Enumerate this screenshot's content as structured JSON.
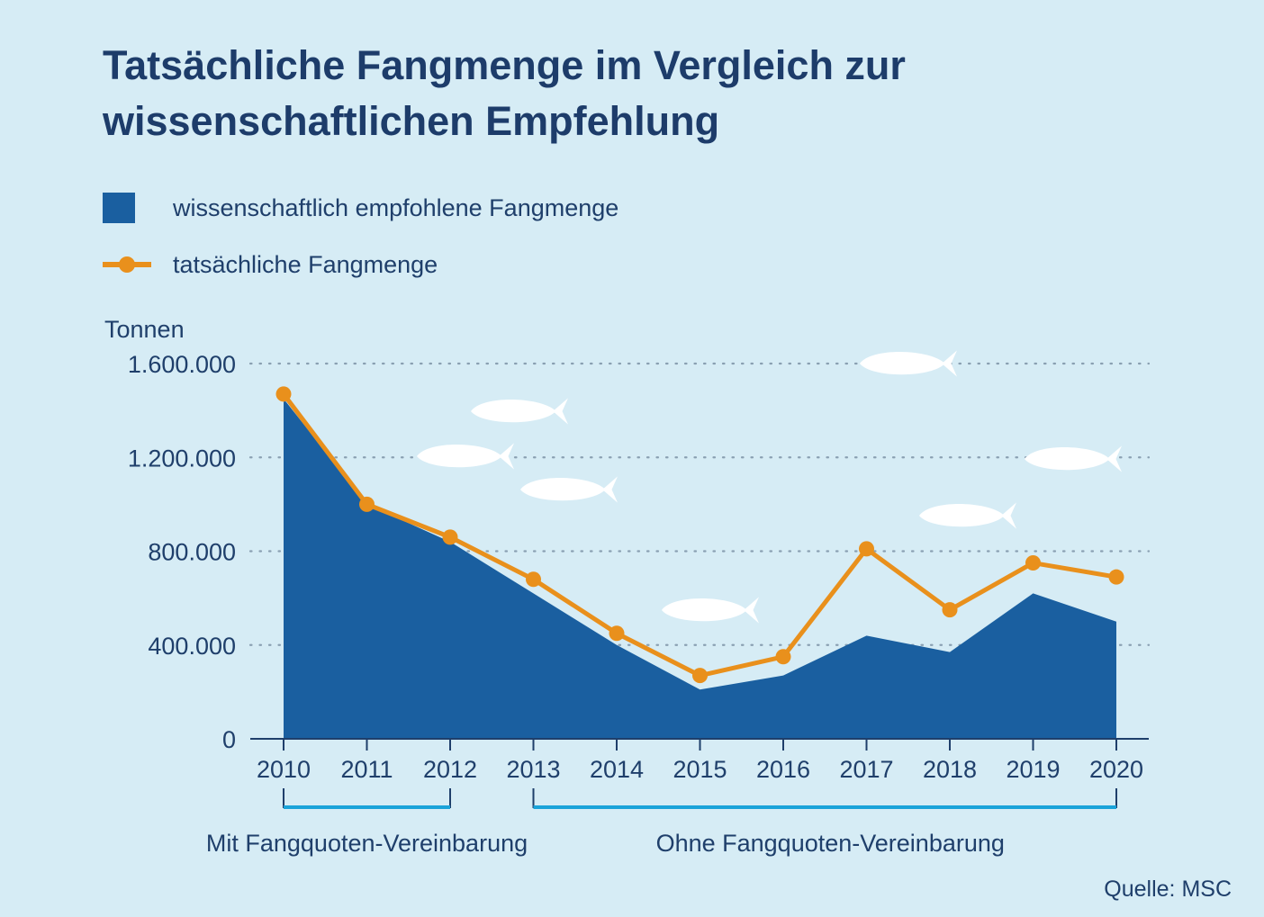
{
  "title_line1": "Tatsächliche Fangmenge im Vergleich zur",
  "title_line2": "wissenschaftlichen Empfehlung",
  "legend": [
    {
      "label": "wissenschaftlich empfohlene Fangmenge",
      "color": "#1a5fa0",
      "kind": "area"
    },
    {
      "label": "tatsächliche Fangmenge",
      "color": "#e9901c",
      "kind": "line"
    }
  ],
  "source": "Quelle: MSC",
  "periods": [
    {
      "label": "Mit Fangquoten-Vereinbarung",
      "from": "2010",
      "to": "2012"
    },
    {
      "label": "Ohne Fangquoten-Vereinbarung",
      "from": "2013",
      "to": "2020"
    }
  ],
  "colors": {
    "background": "#d6ecf5",
    "area": "#1a5fa0",
    "line": "#e9901c",
    "period_bar": "#1aa3d9",
    "text": "#1f3f6b"
  },
  "chart_data": {
    "type": "area",
    "x": [
      "2010",
      "2011",
      "2012",
      "2013",
      "2014",
      "2015",
      "2016",
      "2017",
      "2018",
      "2019",
      "2020"
    ],
    "series": [
      {
        "name": "wissenschaftlich empfohlene Fangmenge",
        "type": "area",
        "values": [
          1450000,
          1000000,
          840000,
          620000,
          400000,
          210000,
          270000,
          440000,
          370000,
          620000,
          500000
        ]
      },
      {
        "name": "tatsächliche Fangmenge",
        "type": "line",
        "values": [
          1470000,
          1000000,
          860000,
          680000,
          450000,
          270000,
          350000,
          810000,
          550000,
          750000,
          690000
        ]
      }
    ],
    "ylabel": "Tonnen",
    "yticks": [
      0,
      400000,
      800000,
      1200000,
      1600000
    ],
    "ytick_labels": [
      "0",
      "400.000",
      "800.000",
      "1.200.000",
      "1.600.000"
    ],
    "ylim": [
      0,
      1600000
    ],
    "grid": "horizontal dotted",
    "legend_position": "top-left",
    "decorations": "white fish silhouettes"
  }
}
